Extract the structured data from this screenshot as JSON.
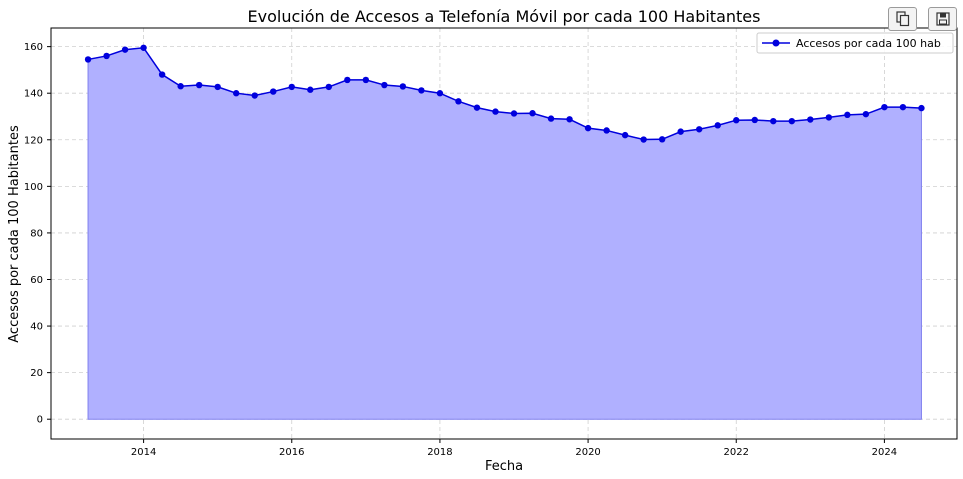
{
  "toolbar": {
    "buttons": [
      {
        "icon": "copy-icon"
      },
      {
        "icon": "save-icon"
      }
    ]
  },
  "chart_data": {
    "type": "area",
    "title": "Evolución de Accesos a Telefonía Móvil por cada 100 Habitantes",
    "xlabel": "Fecha",
    "ylabel": "Accesos por cada 100 Habitantes",
    "xlim": [
      2012.75,
      2024.98
    ],
    "ylim": [
      -8.5,
      168
    ],
    "xticks": [
      2014,
      2016,
      2018,
      2020,
      2022,
      2024
    ],
    "yticks": [
      0,
      20,
      40,
      60,
      80,
      100,
      120,
      140,
      160
    ],
    "grid": true,
    "legend_position": "top-right",
    "colors": {
      "line": "#0000dd",
      "fill": "#b0b0ff",
      "grid": "#cfcfcf"
    },
    "series": [
      {
        "name": "Accesos por cada 100 hab",
        "x": [
          2013.25,
          2013.5,
          2013.75,
          2014.0,
          2014.25,
          2014.5,
          2014.75,
          2015.0,
          2015.25,
          2015.5,
          2015.75,
          2016.0,
          2016.25,
          2016.5,
          2016.75,
          2017.0,
          2017.25,
          2017.5,
          2017.75,
          2018.0,
          2018.25,
          2018.5,
          2018.75,
          2019.0,
          2019.25,
          2019.5,
          2019.75,
          2020.0,
          2020.25,
          2020.5,
          2020.75,
          2021.0,
          2021.25,
          2021.5,
          2021.75,
          2022.0,
          2022.25,
          2022.5,
          2022.75,
          2023.0,
          2023.25,
          2023.5,
          2023.75,
          2024.0,
          2024.25,
          2024.5
        ],
        "values": [
          154.5,
          156.0,
          158.7,
          159.5,
          148.0,
          143.0,
          143.5,
          142.7,
          140.0,
          139.0,
          140.7,
          142.7,
          141.5,
          142.7,
          145.7,
          145.7,
          143.5,
          142.9,
          141.2,
          140.0,
          136.5,
          133.8,
          132.1,
          131.3,
          131.4,
          129.1,
          128.8,
          125.0,
          124.0,
          122.0,
          120.1,
          120.2,
          123.5,
          124.5,
          126.2,
          128.4,
          128.5,
          128.0,
          128.0,
          128.7,
          129.6,
          130.7,
          131.0,
          134.0,
          134.0,
          133.6
        ]
      }
    ]
  }
}
